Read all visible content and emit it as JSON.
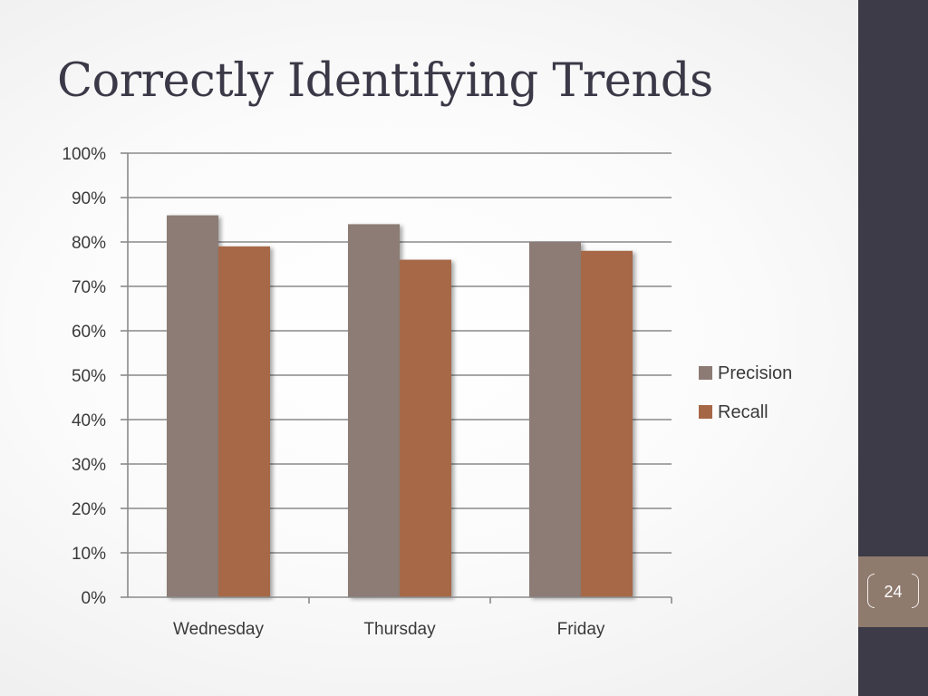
{
  "slide": {
    "title": "Correctly Identifying Trends",
    "page_number": "24"
  },
  "colors": {
    "sidebar": "#3d3b48",
    "page_badge": "#8f7a6e",
    "title_text": "#3b3847"
  },
  "chart_data": {
    "type": "bar",
    "categories": [
      "Wednesday",
      "Thursday",
      "Friday"
    ],
    "series": [
      {
        "name": "Precision",
        "values": [
          86,
          84,
          80
        ],
        "color": "#8c7b74"
      },
      {
        "name": "Recall",
        "values": [
          79,
          76,
          78
        ],
        "color": "#a66746"
      }
    ],
    "ylim": [
      0,
      100
    ],
    "yticks": [
      "0%",
      "10%",
      "20%",
      "30%",
      "40%",
      "50%",
      "60%",
      "70%",
      "80%",
      "90%",
      "100%"
    ],
    "grid": true,
    "legend_position": "right"
  }
}
